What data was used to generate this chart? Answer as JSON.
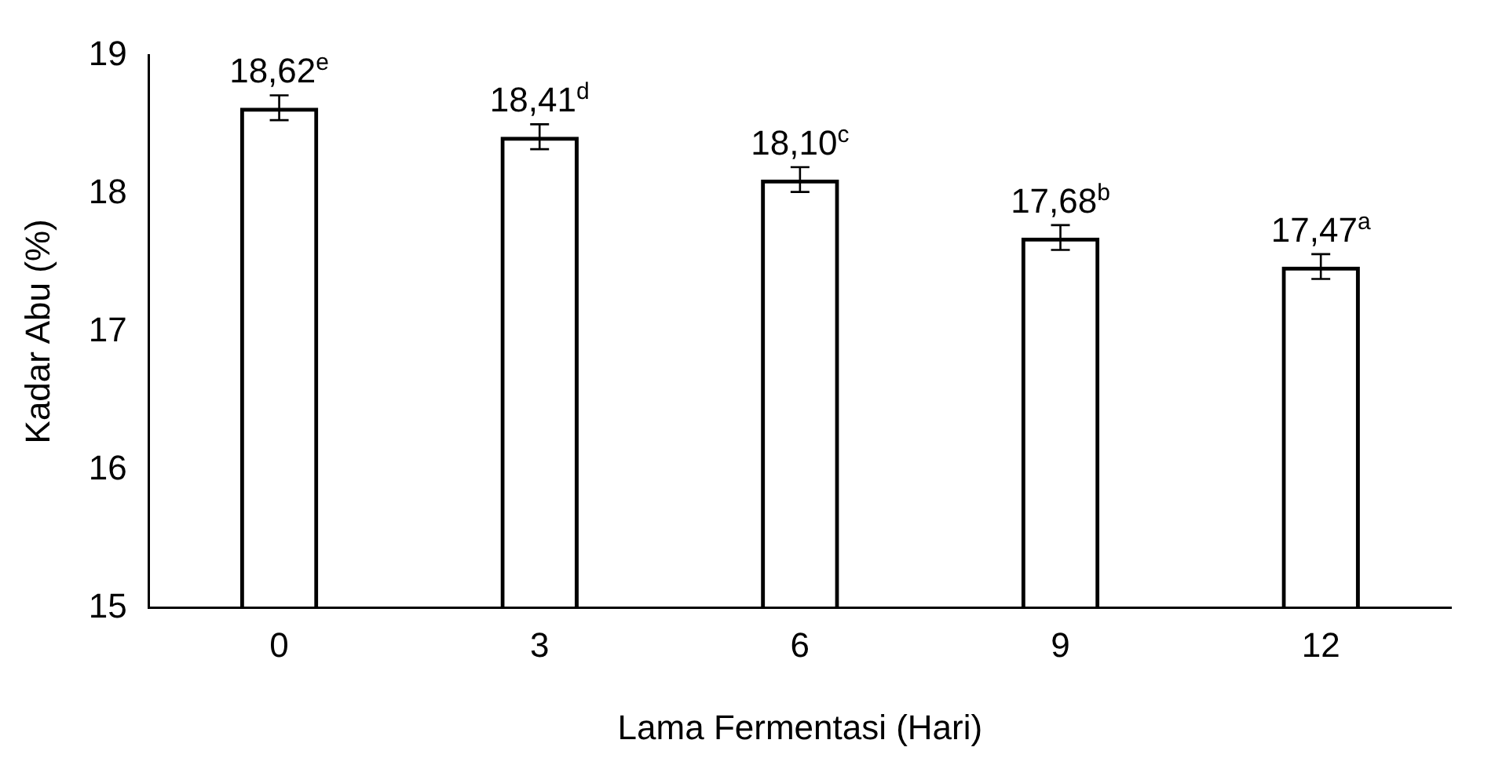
{
  "chart_data": {
    "type": "bar",
    "xlabel": "Lama Fermentasi (Hari)",
    "ylabel": "Kadar Abu (%)",
    "categories": [
      "0",
      "3",
      "6",
      "9",
      "12"
    ],
    "values": [
      18.62,
      18.41,
      18.1,
      17.68,
      17.47
    ],
    "errors": [
      0.09,
      0.09,
      0.09,
      0.09,
      0.09
    ],
    "value_labels": [
      "18,62$^{e}$",
      "18,41$^{d}$",
      "18,10$^{c}$",
      "17,68$^{b}$",
      "17,47$^{a}$"
    ],
    "color": "#000000",
    "ylim": [
      15,
      19
    ],
    "yticks": [
      15,
      16,
      17,
      18,
      19
    ],
    "grid": false,
    "legend": false
  }
}
